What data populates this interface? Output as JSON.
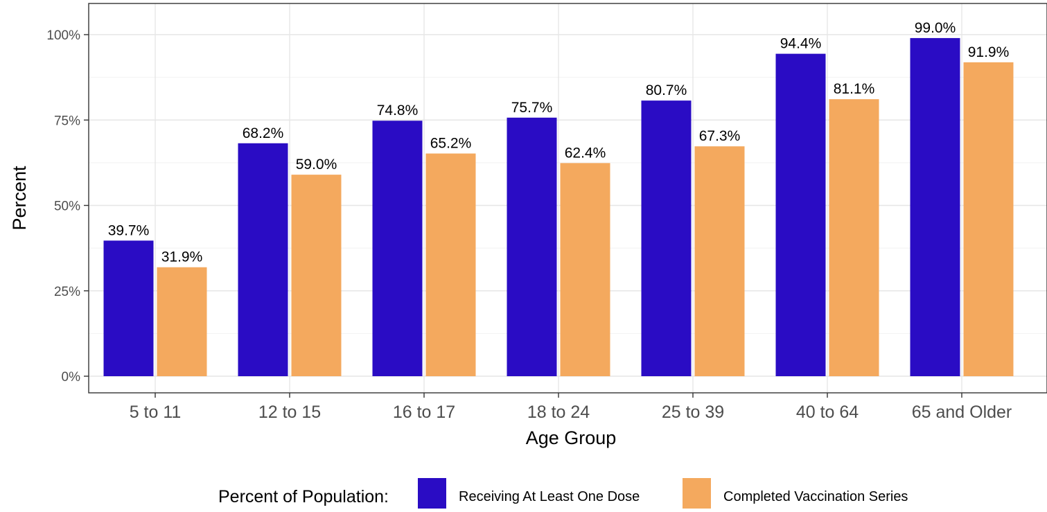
{
  "chart_data": {
    "type": "bar",
    "title": "",
    "xlabel": "Age Group",
    "ylabel": "Percent",
    "categories": [
      "5 to 11",
      "12 to 15",
      "16 to 17",
      "18 to 24",
      "25 to 39",
      "40 to 64",
      "65 and Older"
    ],
    "series": [
      {
        "name": "Receiving At Least One Dose",
        "color": "#2a0cc4",
        "values": [
          39.7,
          68.2,
          74.8,
          75.7,
          80.7,
          94.4,
          99.0
        ],
        "labels": [
          "39.7%",
          "68.2%",
          "74.8%",
          "75.7%",
          "80.7%",
          "94.4%",
          "99.0%"
        ]
      },
      {
        "name": "Completed Vaccination Series",
        "color": "#f4a95e",
        "values": [
          31.9,
          59.0,
          65.2,
          62.4,
          67.3,
          81.1,
          91.9
        ],
        "labels": [
          "31.9%",
          "59.0%",
          "65.2%",
          "62.4%",
          "67.3%",
          "81.1%",
          "91.9%"
        ]
      }
    ],
    "ylim": [
      0,
      100
    ],
    "yticks": [
      0,
      25,
      50,
      75,
      100
    ],
    "ytick_labels": [
      "0%",
      "25%",
      "50%",
      "75%",
      "100%"
    ],
    "grid": true,
    "legend": {
      "title": "Percent of Population:",
      "position": "bottom"
    }
  }
}
